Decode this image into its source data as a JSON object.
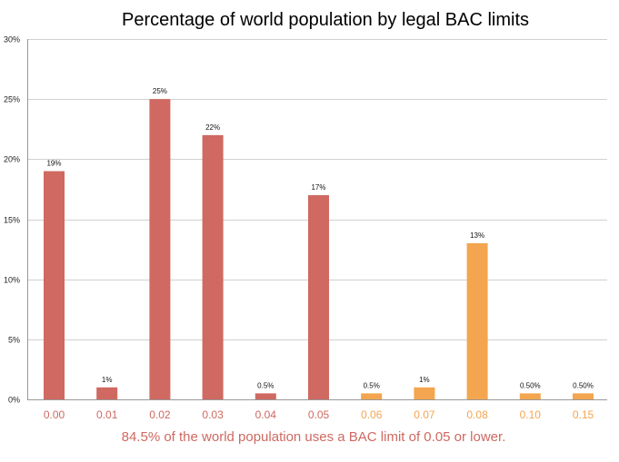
{
  "chart_data": {
    "type": "bar",
    "title": "Percentage of world population by legal BAC limits",
    "categories": [
      "0.00",
      "0.01",
      "0.02",
      "0.03",
      "0.04",
      "0.05",
      "0.06",
      "0.07",
      "0.08",
      "0.10",
      "0.15"
    ],
    "values": [
      19,
      1,
      25,
      22,
      0.5,
      17,
      0.5,
      1,
      13,
      0.5,
      0.5
    ],
    "data_labels": [
      "19%",
      "1%",
      "25%",
      "22%",
      "0.5%",
      "17%",
      "0.5%",
      "1%",
      "13%",
      "0.50%",
      "0.50%"
    ],
    "groups": [
      "low",
      "low",
      "low",
      "low",
      "low",
      "low",
      "high",
      "high",
      "high",
      "high",
      "high"
    ],
    "ylim": [
      0,
      30
    ],
    "yticks": [
      0,
      5,
      10,
      15,
      20,
      25,
      30
    ],
    "ytick_labels": [
      "0%",
      "5%",
      "10%",
      "15%",
      "20%",
      "25%",
      "30%"
    ],
    "grid": true,
    "colors": {
      "low": "#cf6961",
      "high": "#f4a550",
      "note": "#cf6961"
    },
    "annotation": "84.5% of the world population uses a BAC limit of 0.05 or lower."
  }
}
